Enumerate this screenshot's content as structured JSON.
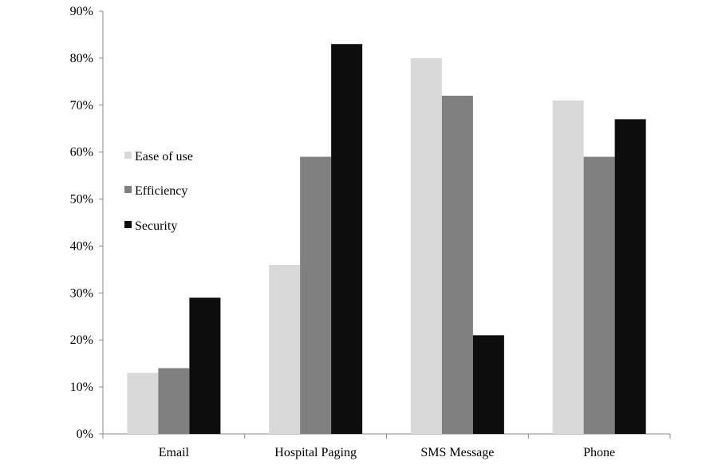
{
  "chart_data": {
    "type": "bar",
    "title": "",
    "xlabel": "",
    "ylabel": "",
    "categories": [
      "Email",
      "Hospital Paging",
      "SMS Message",
      "Phone"
    ],
    "series": [
      {
        "name": "Ease of use",
        "color": "#d9d9d9",
        "values": [
          13,
          36,
          80,
          71
        ]
      },
      {
        "name": "Efficiency",
        "color": "#808080",
        "values": [
          14,
          59,
          72,
          59
        ]
      },
      {
        "name": "Security",
        "color": "#0d0d0d",
        "values": [
          29,
          83,
          21,
          67
        ]
      }
    ],
    "ylim": [
      0,
      90
    ],
    "yticks": [
      0,
      10,
      20,
      30,
      40,
      50,
      60,
      70,
      80,
      90
    ],
    "ytick_labels": [
      "0%",
      "10%",
      "20%",
      "30%",
      "40%",
      "50%",
      "60%",
      "70%",
      "80%",
      "90%"
    ],
    "grid": false,
    "legend_position": "left-middle"
  }
}
